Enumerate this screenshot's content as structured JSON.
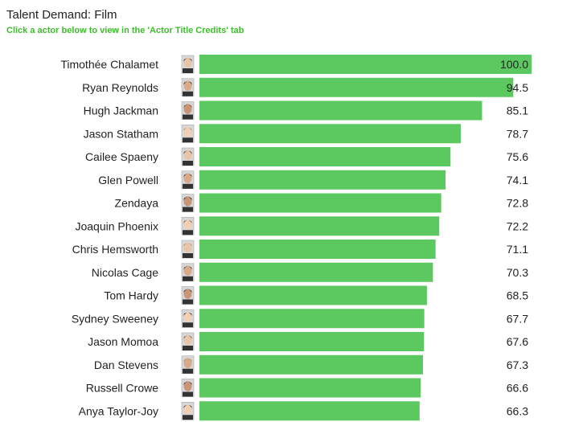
{
  "header": {
    "title": "Talent Demand: Film",
    "instruction": "Click a actor below to view in the 'Actor Title Credits' tab"
  },
  "colors": {
    "bar": "#5cc860",
    "accent": "#3cbd2a"
  },
  "chart_data": {
    "type": "bar",
    "orientation": "horizontal",
    "categories": [
      "Timothée Chalamet",
      "Ryan Reynolds",
      "Hugh Jackman",
      "Jason Statham",
      "Cailee Spaeny",
      "Glen Powell",
      "Zendaya",
      "Joaquin Phoenix",
      "Chris Hemsworth",
      "Nicolas Cage",
      "Tom Hardy",
      "Sydney Sweeney",
      "Jason Momoa",
      "Dan Stevens",
      "Russell Crowe",
      "Anya Taylor-Joy"
    ],
    "values": [
      100.0,
      94.5,
      85.1,
      78.7,
      75.6,
      74.1,
      72.8,
      72.2,
      71.1,
      70.3,
      68.5,
      67.7,
      67.6,
      67.3,
      66.6,
      66.3
    ],
    "value_labels": [
      "100.0",
      "94.5",
      "85.1",
      "78.7",
      "75.6",
      "74.1",
      "72.8",
      "72.2",
      "71.1",
      "70.3",
      "68.5",
      "67.7",
      "67.6",
      "67.3",
      "66.6",
      "66.3"
    ],
    "xlim": [
      0,
      100
    ],
    "grid": false,
    "legend": "none",
    "avatar_icons": [
      "actor-photo-icon"
    ]
  }
}
